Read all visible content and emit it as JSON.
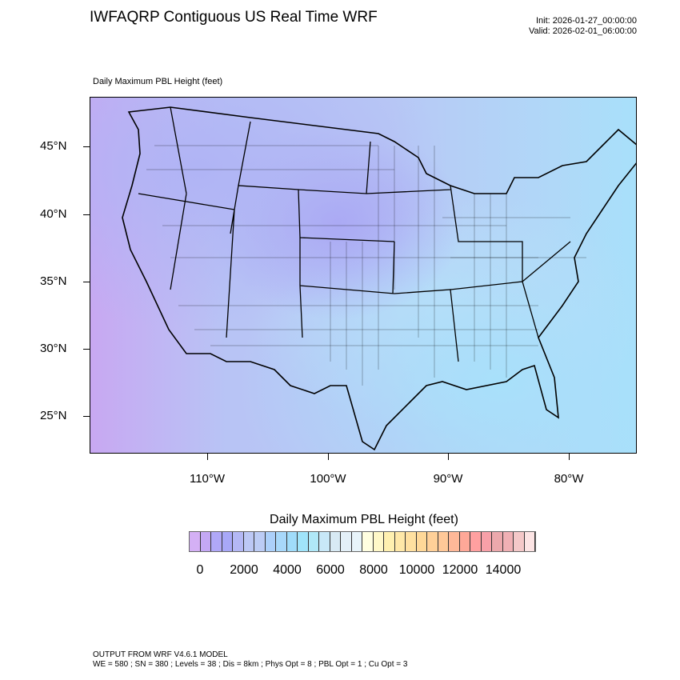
{
  "header": {
    "title": "IWFAQRP Contiguous US Real Time WRF",
    "init": "Init: 2026-01-27_00:00:00",
    "valid": "Valid: 2026-02-01_06:00:00"
  },
  "map": {
    "field_label": "Daily Maximum PBL Height   (feet)",
    "lat_labels": [
      "45°N",
      "40°N",
      "35°N",
      "30°N",
      "25°N"
    ],
    "lon_labels": [
      "110°W",
      "100°W",
      "90°W",
      "80°W"
    ]
  },
  "colorbar": {
    "title": "Daily Maximum PBL Height  (feet)",
    "labels": [
      "0",
      "2000",
      "4000",
      "6000",
      "8000",
      "10000",
      "12000",
      "14000"
    ],
    "colors": [
      "#d4b0f5",
      "#c4a8f5",
      "#b0a8f8",
      "#a8a8f8",
      "#b4b8f5",
      "#bcc8f5",
      "#bcccf5",
      "#acd0fa",
      "#a8d8fa",
      "#a0dcfa",
      "#a0e4fa",
      "#b0e8f8",
      "#c8e8f8",
      "#d8eaf4",
      "#e4f0f8",
      "#e8f4fa",
      "#fffee0",
      "#fff8c8",
      "#fff0b0",
      "#ffe8a8",
      "#ffe0a0",
      "#ffd898",
      "#ffd098",
      "#ffc898",
      "#ffb898",
      "#ffa898",
      "#ffa0a0",
      "#f8a0a8",
      "#eca8ac",
      "#f0b0b4",
      "#f4c8c8",
      "#fce4e4"
    ]
  },
  "footer": {
    "line1": "OUTPUT FROM WRF V4.6.1 MODEL",
    "line2": "WE = 580 ; SN = 380 ; Levels = 38 ; Dis = 8km ; Phys Opt = 8 ; PBL Opt = 1 ; Cu Opt = 3"
  }
}
